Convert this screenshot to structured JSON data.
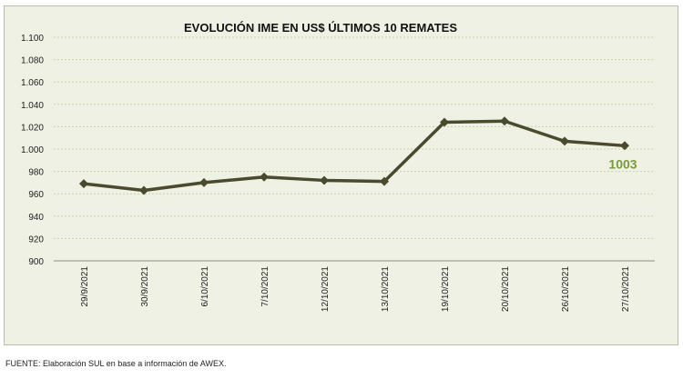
{
  "chart_data": {
    "type": "line",
    "title": "EVOLUCIÓN IME EN US$ ÚLTIMOS 10 REMATES",
    "categories": [
      "29/9/2021",
      "30/9/2021",
      "6/10/2021",
      "7/10/2021",
      "12/10/2021",
      "13/10/2021",
      "19/10/2021",
      "20/10/2021",
      "26/10/2021",
      "27/10/2021"
    ],
    "series": [
      {
        "values": [
          969,
          963,
          970,
          975,
          972,
          971,
          1024,
          1025,
          1007,
          1003
        ]
      }
    ],
    "ylim": [
      900,
      1100
    ],
    "yticks": [
      "900",
      "920",
      "940",
      "960",
      "980",
      "1.000",
      "1.020",
      "1.040",
      "1.060",
      "1.080",
      "1.100"
    ],
    "grid": true,
    "data_label": "1003",
    "colors": {
      "line": "#4a4a2e",
      "label": "#7a9a3a",
      "grid": "#c8d3a8",
      "background": "#eef1e3"
    }
  },
  "footer": "FUENTE: Elaboración SUL en base a información de AWEX."
}
